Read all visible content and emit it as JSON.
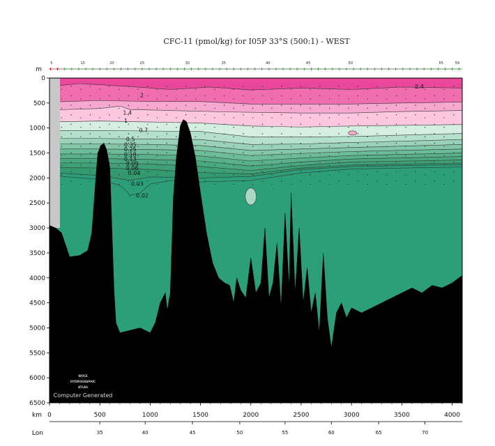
{
  "chart_data": {
    "type": "contour-section",
    "title": "CFC-11 (pmol/kg) for I05P 33°S (500:1) - WEST",
    "depth_axis": {
      "unit_label": "m",
      "range": [
        0,
        6500
      ],
      "ticks": [
        "0",
        "500",
        "1000",
        "1500",
        "2000",
        "2500",
        "3000",
        "3500",
        "4000",
        "4500",
        "5000",
        "5500",
        "6000",
        "6500"
      ]
    },
    "distance_axis": {
      "unit_label": "km",
      "range": [
        0,
        4100
      ],
      "ticks": [
        "0",
        "500",
        "1000",
        "1500",
        "2000",
        "2500",
        "3000",
        "3500",
        "4000"
      ]
    },
    "lon_axis": {
      "unit_label": "Lon",
      "ticks": [
        {
          "label": "35",
          "km": 500
        },
        {
          "label": "40",
          "km": 950
        },
        {
          "label": "45",
          "km": 1420
        },
        {
          "label": "50",
          "km": 1890
        },
        {
          "label": "55",
          "km": 2340
        },
        {
          "label": "60",
          "km": 2800
        },
        {
          "label": "65",
          "km": 3270
        },
        {
          "label": "70",
          "km": 3730
        }
      ]
    },
    "station_labels": [
      {
        "label": "5",
        "km": 20
      },
      {
        "label": "15",
        "km": 330
      },
      {
        "label": "20",
        "km": 620
      },
      {
        "label": "25",
        "km": 920
      },
      {
        "label": "30",
        "km": 1370
      },
      {
        "label": "35",
        "km": 1730
      },
      {
        "label": "40",
        "km": 2170
      },
      {
        "label": "45",
        "km": 2570
      },
      {
        "label": "50",
        "km": 2990
      },
      {
        "label": "55",
        "km": 3890
      },
      {
        "label": "59",
        "km": 4050
      }
    ],
    "contour_labels": [
      {
        "label": "2.4",
        "km": 3630,
        "depth": 170
      },
      {
        "label": "2",
        "km": 900,
        "depth": 340
      },
      {
        "label": "1.4",
        "km": 730,
        "depth": 690
      },
      {
        "label": "1",
        "km": 740,
        "depth": 850
      },
      {
        "label": "0.7",
        "km": 890,
        "depth": 1040
      },
      {
        "label": "0.5",
        "km": 760,
        "depth": 1220
      },
      {
        "label": "0.35",
        "km": 740,
        "depth": 1330
      },
      {
        "label": "0.25",
        "km": 740,
        "depth": 1420
      },
      {
        "label": "0.18",
        "km": 740,
        "depth": 1530
      },
      {
        "label": "0.13",
        "km": 740,
        "depth": 1620
      },
      {
        "label": "0.09",
        "km": 760,
        "depth": 1710
      },
      {
        "label": "0.06",
        "km": 760,
        "depth": 1800
      },
      {
        "label": "0.04",
        "km": 780,
        "depth": 1900
      },
      {
        "label": "0.03",
        "km": 810,
        "depth": 2110
      },
      {
        "label": "0.02",
        "km": 860,
        "depth": 2350
      }
    ],
    "bands": [
      {
        "value": 2.4,
        "color": "#e8479a",
        "depth": [
          [
            0,
            170
          ],
          [
            300,
            110
          ],
          [
            800,
            170
          ],
          [
            1200,
            230
          ],
          [
            1600,
            180
          ],
          [
            2000,
            240
          ],
          [
            2500,
            200
          ],
          [
            3000,
            230
          ],
          [
            3500,
            180
          ],
          [
            4100,
            200
          ]
        ]
      },
      {
        "value": 2,
        "color": "#f06db0",
        "depth": [
          [
            0,
            480
          ],
          [
            500,
            450
          ],
          [
            1000,
            470
          ],
          [
            1500,
            470
          ],
          [
            2000,
            520
          ],
          [
            2500,
            520
          ],
          [
            3000,
            520
          ],
          [
            3500,
            500
          ],
          [
            4100,
            480
          ]
        ]
      },
      {
        "value": 1.4,
        "color": "#f6a8cf",
        "depth": [
          [
            0,
            640
          ],
          [
            500,
            610
          ],
          [
            700,
            560
          ],
          [
            800,
            630
          ],
          [
            1200,
            650
          ],
          [
            1800,
            680
          ],
          [
            2500,
            700
          ],
          [
            3000,
            700
          ],
          [
            3500,
            670
          ],
          [
            4100,
            650
          ]
        ]
      },
      {
        "value": 1,
        "color": "#fbc8df",
        "depth": [
          [
            0,
            880
          ],
          [
            500,
            860
          ],
          [
            1000,
            880
          ],
          [
            1500,
            900
          ],
          [
            2000,
            960
          ],
          [
            2500,
            980
          ],
          [
            3000,
            960
          ],
          [
            4100,
            930
          ]
        ]
      },
      {
        "value": 0.7,
        "color": "#d4efe2",
        "depth": [
          [
            0,
            1050
          ],
          [
            500,
            1050
          ],
          [
            1000,
            1060
          ],
          [
            1500,
            1070
          ],
          [
            2000,
            1180
          ],
          [
            2500,
            1180
          ],
          [
            3000,
            1170
          ],
          [
            4100,
            1110
          ]
        ]
      },
      {
        "value": 0.5,
        "color": "#b5e0cc",
        "depth": [
          [
            0,
            1210
          ],
          [
            500,
            1210
          ],
          [
            1000,
            1220
          ],
          [
            1500,
            1230
          ],
          [
            2000,
            1330
          ],
          [
            2500,
            1320
          ],
          [
            3000,
            1290
          ],
          [
            4100,
            1230
          ]
        ]
      },
      {
        "value": 0.35,
        "color": "#99d2b8",
        "depth": [
          [
            0,
            1320
          ],
          [
            500,
            1320
          ],
          [
            1000,
            1330
          ],
          [
            1500,
            1350
          ],
          [
            2000,
            1450
          ],
          [
            2500,
            1420
          ],
          [
            3000,
            1390
          ],
          [
            4100,
            1330
          ]
        ]
      },
      {
        "value": 0.25,
        "color": "#82c7a8",
        "depth": [
          [
            0,
            1420
          ],
          [
            500,
            1420
          ],
          [
            1000,
            1430
          ],
          [
            1500,
            1450
          ],
          [
            2000,
            1550
          ],
          [
            2500,
            1510
          ],
          [
            3000,
            1470
          ],
          [
            4100,
            1420
          ]
        ]
      },
      {
        "value": 0.18,
        "color": "#6dbc99",
        "depth": [
          [
            0,
            1520
          ],
          [
            500,
            1520
          ],
          [
            1000,
            1530
          ],
          [
            1500,
            1560
          ],
          [
            2000,
            1660
          ],
          [
            2500,
            1600
          ],
          [
            3000,
            1550
          ],
          [
            4100,
            1500
          ]
        ]
      },
      {
        "value": 0.13,
        "color": "#59b18b",
        "depth": [
          [
            0,
            1610
          ],
          [
            500,
            1610
          ],
          [
            1000,
            1630
          ],
          [
            1500,
            1660
          ],
          [
            2000,
            1760
          ],
          [
            2500,
            1680
          ],
          [
            3000,
            1620
          ],
          [
            4100,
            1570
          ]
        ]
      },
      {
        "value": 0.09,
        "color": "#4aa87f",
        "depth": [
          [
            0,
            1700
          ],
          [
            500,
            1700
          ],
          [
            1000,
            1720
          ],
          [
            1500,
            1770
          ],
          [
            2000,
            1850
          ],
          [
            2500,
            1750
          ],
          [
            3000,
            1680
          ],
          [
            4100,
            1640
          ]
        ]
      },
      {
        "value": 0.06,
        "color": "#3ea076",
        "depth": [
          [
            0,
            1790
          ],
          [
            500,
            1800
          ],
          [
            1000,
            1830
          ],
          [
            1500,
            1890
          ],
          [
            2000,
            1920
          ],
          [
            2500,
            1800
          ],
          [
            3000,
            1740
          ],
          [
            4100,
            1700
          ]
        ]
      },
      {
        "value": 0.04,
        "color": "#33996e",
        "depth": [
          [
            0,
            1890
          ],
          [
            500,
            1950
          ],
          [
            800,
            2050
          ],
          [
            1000,
            1980
          ],
          [
            1500,
            2000
          ],
          [
            2000,
            1970
          ],
          [
            2500,
            1830
          ],
          [
            3000,
            1770
          ],
          [
            4100,
            1730
          ]
        ]
      },
      {
        "value": 0.03,
        "color": "#2c9f7a",
        "depth": [
          [
            0,
            6500
          ],
          [
            4100,
            6500
          ]
        ]
      }
    ],
    "bottom_profile": [
      [
        0,
        2950
      ],
      [
        60,
        3000
      ],
      [
        120,
        3100
      ],
      [
        200,
        3580
      ],
      [
        300,
        3550
      ],
      [
        380,
        3450
      ],
      [
        420,
        3100
      ],
      [
        460,
        2000
      ],
      [
        480,
        1500
      ],
      [
        510,
        1350
      ],
      [
        540,
        1300
      ],
      [
        570,
        1450
      ],
      [
        600,
        1800
      ],
      [
        620,
        3000
      ],
      [
        640,
        4200
      ],
      [
        660,
        4900
      ],
      [
        700,
        5100
      ],
      [
        800,
        5050
      ],
      [
        900,
        5000
      ],
      [
        1000,
        5100
      ],
      [
        1050,
        4900
      ],
      [
        1100,
        4500
      ],
      [
        1150,
        4300
      ],
      [
        1170,
        4650
      ],
      [
        1200,
        4300
      ],
      [
        1230,
        2400
      ],
      [
        1260,
        1600
      ],
      [
        1300,
        950
      ],
      [
        1330,
        830
      ],
      [
        1360,
        870
      ],
      [
        1400,
        1100
      ],
      [
        1450,
        1600
      ],
      [
        1500,
        2300
      ],
      [
        1560,
        3100
      ],
      [
        1620,
        3700
      ],
      [
        1680,
        4000
      ],
      [
        1740,
        4100
      ],
      [
        1790,
        4150
      ],
      [
        1830,
        4500
      ],
      [
        1860,
        4000
      ],
      [
        1900,
        4250
      ],
      [
        1950,
        4400
      ],
      [
        2000,
        3600
      ],
      [
        2050,
        4300
      ],
      [
        2100,
        4100
      ],
      [
        2140,
        3000
      ],
      [
        2180,
        4400
      ],
      [
        2220,
        4100
      ],
      [
        2260,
        3300
      ],
      [
        2300,
        4600
      ],
      [
        2340,
        2700
      ],
      [
        2380,
        4200
      ],
      [
        2400,
        2300
      ],
      [
        2440,
        4300
      ],
      [
        2480,
        3000
      ],
      [
        2520,
        4500
      ],
      [
        2560,
        3800
      ],
      [
        2600,
        4700
      ],
      [
        2640,
        4300
      ],
      [
        2680,
        5100
      ],
      [
        2720,
        3500
      ],
      [
        2760,
        4800
      ],
      [
        2800,
        5400
      ],
      [
        2850,
        4700
      ],
      [
        2900,
        4500
      ],
      [
        2950,
        4800
      ],
      [
        3000,
        4600
      ],
      [
        3100,
        4700
      ],
      [
        3200,
        4600
      ],
      [
        3300,
        4500
      ],
      [
        3400,
        4400
      ],
      [
        3500,
        4300
      ],
      [
        3600,
        4200
      ],
      [
        3700,
        4300
      ],
      [
        3800,
        4150
      ],
      [
        3900,
        4200
      ],
      [
        4000,
        4100
      ],
      [
        4100,
        3950
      ]
    ],
    "bubbles": [
      {
        "value": 0.02,
        "km": 2000,
        "depth": 2370,
        "rx_km": 55,
        "ry_m": 170
      }
    ],
    "annotations": [
      "WOCE",
      "HYDROGRAPHIC",
      "ATLAS",
      "Computer Generated"
    ]
  }
}
